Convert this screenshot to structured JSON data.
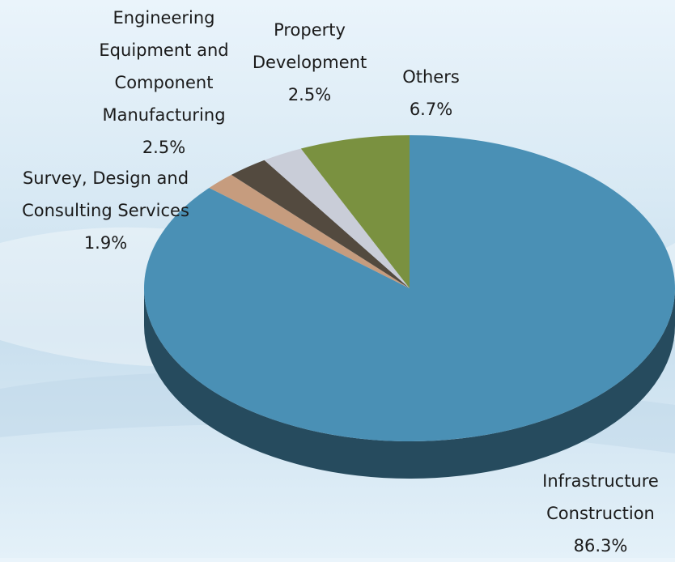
{
  "chart_data": {
    "type": "pie",
    "categories": [
      "Infrastructure Construction",
      "Survey, Design and Consulting Services",
      "Engineering Equipment and Component Manufacturing",
      "Property Development",
      "Others"
    ],
    "values": [
      86.3,
      1.9,
      2.5,
      2.5,
      6.7
    ],
    "value_labels": [
      "86.3%",
      "1.9%",
      "2.5%",
      "2.5%",
      "6.7%"
    ],
    "colors": [
      "#4a90b5",
      "#c69c7e",
      "#534a3f",
      "#c9cdd8",
      "#7a9140"
    ]
  }
}
